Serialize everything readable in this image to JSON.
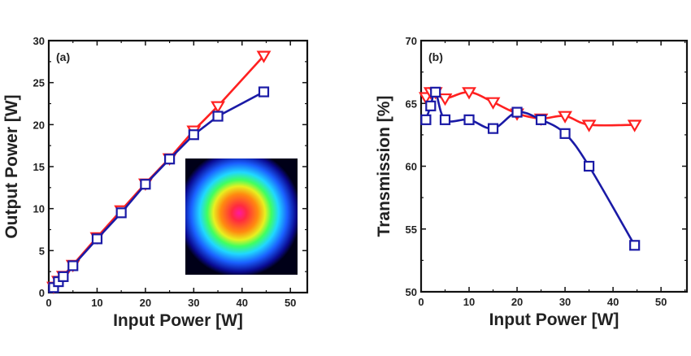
{
  "chart_data": [
    {
      "type": "line",
      "panel_label": "(a)",
      "xlabel": "Input Power [W]",
      "ylabel": "Output Power [W]",
      "xlim": [
        0,
        53.5
      ],
      "ylim": [
        0,
        30
      ],
      "xticks": [
        0,
        10,
        20,
        30,
        40,
        50
      ],
      "yticks": [
        0,
        5,
        10,
        15,
        20,
        25,
        30
      ],
      "grid": false,
      "inset": "beam-profile-image",
      "series": [
        {
          "marker": "triangle-down",
          "color": "#ff2020",
          "x": [
            1,
            2,
            3,
            5,
            10,
            15,
            20,
            25,
            30,
            35,
            44.5
          ],
          "y": [
            0.7,
            1.4,
            2.0,
            3.3,
            6.6,
            9.8,
            13.0,
            16.0,
            19.3,
            22.2,
            28.2
          ]
        },
        {
          "marker": "square",
          "color": "#1a1aa6",
          "x": [
            1,
            2,
            3,
            5,
            10,
            15,
            20,
            25,
            30,
            35,
            44.5
          ],
          "y": [
            0.6,
            1.3,
            1.9,
            3.2,
            6.4,
            9.5,
            12.9,
            15.9,
            18.8,
            21.0,
            23.9
          ]
        }
      ]
    },
    {
      "type": "line",
      "panel_label": "(b)",
      "xlabel": "Input Power [W]",
      "ylabel": "Transmission [%]",
      "xlim": [
        0,
        55.4
      ],
      "ylim": [
        50,
        70
      ],
      "xticks": [
        0,
        10,
        20,
        30,
        40,
        50
      ],
      "yticks": [
        50,
        55,
        60,
        65,
        70
      ],
      "grid": false,
      "series": [
        {
          "marker": "triangle-down",
          "color": "#ff2020",
          "x": [
            1,
            2,
            3,
            5,
            10,
            15,
            20,
            25,
            30,
            35,
            44.5
          ],
          "y": [
            65.5,
            65.9,
            65.9,
            65.4,
            65.9,
            65.1,
            64.2,
            63.8,
            64.0,
            63.3,
            63.3
          ]
        },
        {
          "marker": "square",
          "color": "#1a1aa6",
          "x": [
            1,
            2,
            3,
            5,
            10,
            15,
            20,
            25,
            30,
            35,
            44.5
          ],
          "y": [
            63.7,
            64.8,
            65.9,
            63.7,
            63.7,
            63.0,
            64.3,
            63.7,
            62.6,
            60.0,
            53.7
          ]
        }
      ]
    }
  ]
}
